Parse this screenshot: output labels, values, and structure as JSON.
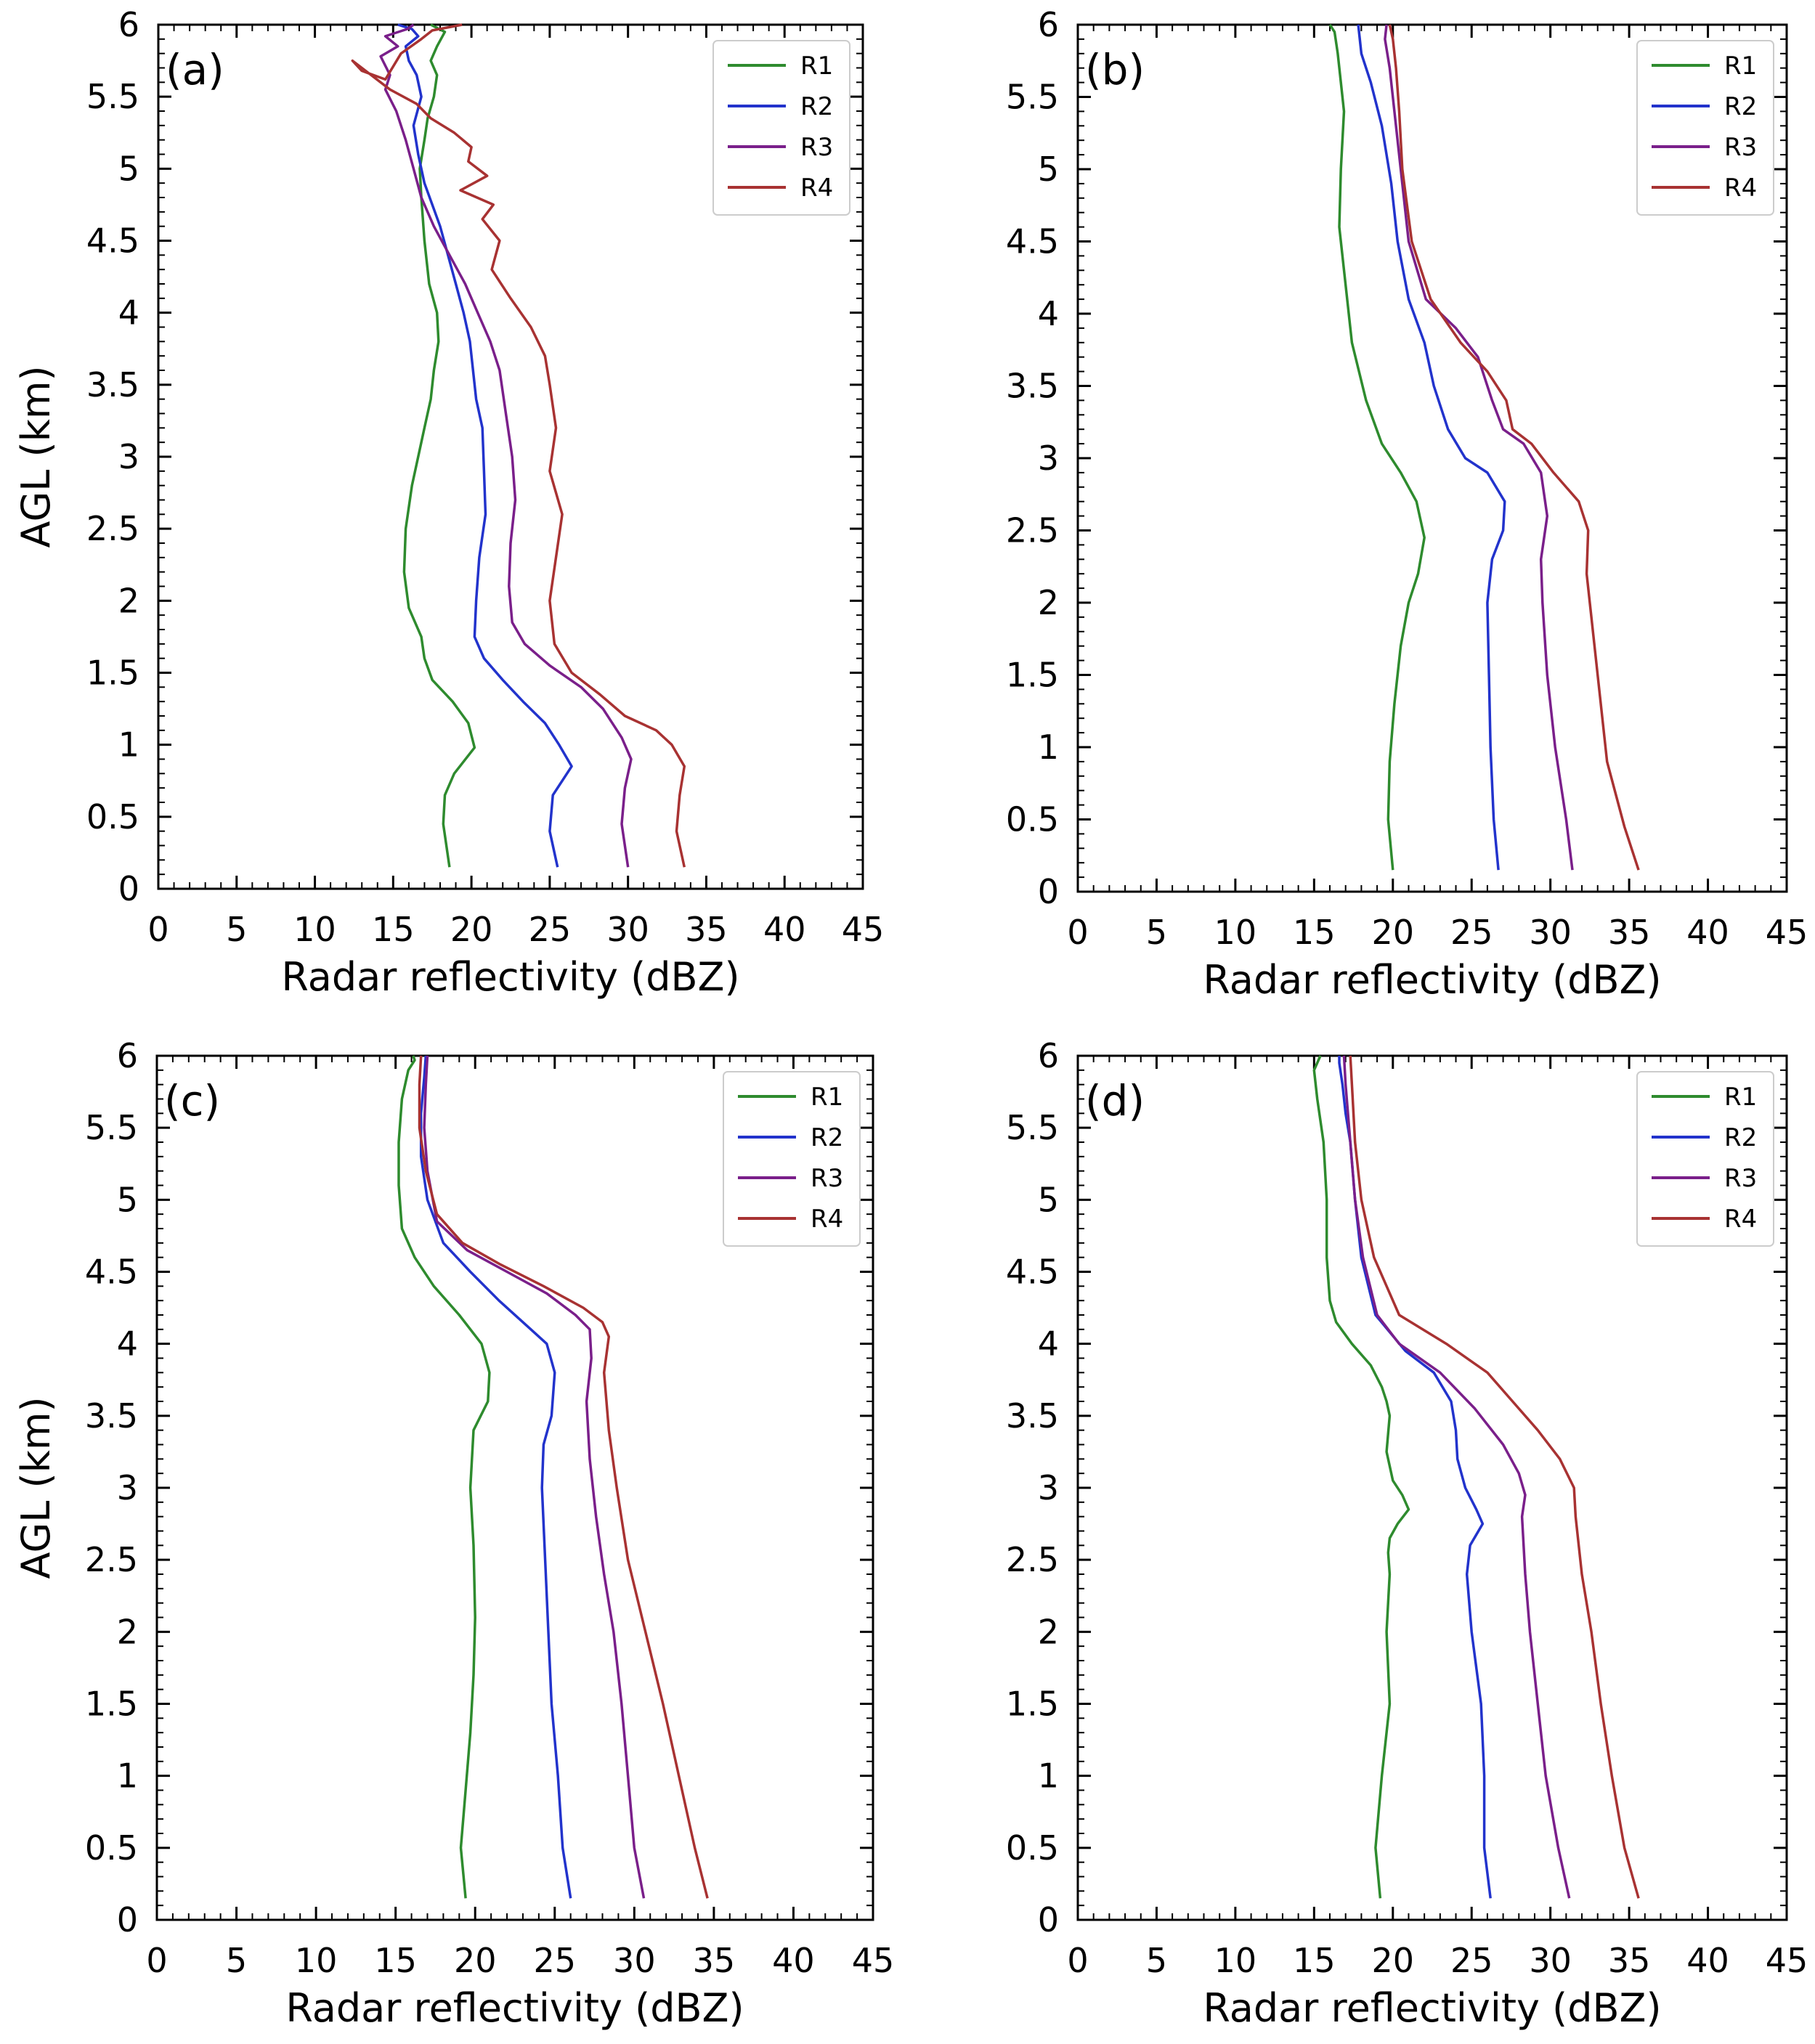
{
  "figure": {
    "colors": {
      "R1": "#2e8b2e",
      "R2": "#2233cc",
      "R3": "#7a1f8a",
      "R4": "#a83232",
      "axis": "#000000"
    }
  },
  "chart_data": [
    {
      "type": "line",
      "panel_label": "(a)",
      "xlabel": "Radar reflectivity (dBZ)",
      "ylabel": "AGL (km)",
      "xlim": [
        0,
        45
      ],
      "ylim": [
        0,
        6
      ],
      "xticks": [
        "0",
        "5",
        "10",
        "15",
        "20",
        "25",
        "30",
        "35",
        "40",
        "45"
      ],
      "yticks": [
        "0",
        "0.5",
        "1",
        "1.5",
        "2",
        "2.5",
        "3",
        "3.5",
        "4",
        "4.5",
        "5",
        "5.5",
        "6"
      ],
      "legend": [
        "R1",
        "R2",
        "R3",
        "R4"
      ],
      "legend_position": "top-right",
      "series": [
        {
          "name": "R1",
          "x": [
            18.6,
            18.2,
            18.3,
            18.9,
            20.2,
            19.8,
            18.8,
            17.5,
            17.0,
            16.8,
            16.0,
            15.7,
            15.8,
            16.2,
            16.6,
            17.0,
            17.4,
            17.6,
            17.9,
            17.8,
            17.3,
            17.0,
            16.8,
            16.7,
            17.0,
            17.2,
            17.6,
            17.8,
            17.4,
            17.8,
            18.3,
            17.4
          ],
          "y": [
            0.15,
            0.45,
            0.65,
            0.8,
            0.98,
            1.15,
            1.3,
            1.45,
            1.6,
            1.75,
            1.95,
            2.2,
            2.5,
            2.8,
            3.0,
            3.2,
            3.4,
            3.6,
            3.8,
            4.0,
            4.2,
            4.5,
            4.8,
            5.0,
            5.2,
            5.35,
            5.5,
            5.65,
            5.75,
            5.85,
            5.95,
            6.0
          ]
        },
        {
          "name": "R2",
          "x": [
            25.5,
            25.0,
            25.2,
            26.4,
            25.6,
            24.7,
            23.3,
            22.0,
            20.8,
            20.2,
            20.3,
            20.5,
            20.9,
            20.8,
            20.7,
            20.3,
            20.1,
            19.9,
            19.5,
            19.0,
            18.5,
            18.0,
            17.0,
            16.6,
            16.3,
            16.8,
            16.5,
            16.0,
            15.8,
            16.6,
            16.2,
            15.3
          ],
          "y": [
            0.15,
            0.4,
            0.65,
            0.85,
            1.0,
            1.15,
            1.3,
            1.45,
            1.6,
            1.75,
            2.0,
            2.3,
            2.6,
            2.9,
            3.2,
            3.4,
            3.6,
            3.8,
            4.0,
            4.2,
            4.4,
            4.6,
            4.9,
            5.1,
            5.3,
            5.5,
            5.65,
            5.75,
            5.85,
            5.92,
            5.97,
            6.0
          ]
        },
        {
          "name": "R3",
          "x": [
            30.0,
            29.6,
            29.8,
            30.2,
            29.6,
            28.4,
            27.0,
            25.0,
            23.4,
            22.6,
            22.4,
            22.5,
            22.8,
            22.6,
            22.2,
            21.8,
            21.2,
            20.4,
            19.6,
            18.6,
            17.6,
            16.8,
            16.3,
            15.8,
            15.2,
            14.5,
            14.8,
            14.2,
            15.3,
            14.5,
            15.9,
            16.3
          ],
          "y": [
            0.15,
            0.45,
            0.7,
            0.9,
            1.05,
            1.25,
            1.4,
            1.55,
            1.7,
            1.85,
            2.1,
            2.4,
            2.7,
            3.0,
            3.3,
            3.6,
            3.8,
            4.0,
            4.2,
            4.4,
            4.6,
            4.8,
            5.0,
            5.2,
            5.4,
            5.55,
            5.65,
            5.78,
            5.85,
            5.92,
            5.97,
            6.0
          ]
        },
        {
          "name": "R4",
          "x": [
            33.6,
            33.1,
            33.3,
            33.6,
            32.8,
            31.8,
            29.8,
            28.2,
            26.4,
            25.3,
            25.0,
            25.4,
            25.8,
            25.0,
            25.4,
            25.0,
            24.7,
            23.8,
            22.5,
            21.3,
            21.8,
            20.7,
            21.4,
            19.3,
            21.0,
            19.8,
            20.0,
            18.9,
            17.4,
            16.5,
            14.8,
            12.4,
            13.0,
            14.5,
            15.5,
            16.8,
            17.5,
            19.4
          ],
          "y": [
            0.15,
            0.4,
            0.65,
            0.85,
            1.0,
            1.1,
            1.2,
            1.35,
            1.5,
            1.7,
            2.0,
            2.3,
            2.6,
            2.9,
            3.2,
            3.5,
            3.7,
            3.9,
            4.1,
            4.3,
            4.5,
            4.65,
            4.75,
            4.85,
            4.95,
            5.05,
            5.15,
            5.25,
            5.35,
            5.45,
            5.55,
            5.75,
            5.68,
            5.62,
            5.8,
            5.9,
            5.96,
            6.0
          ]
        }
      ]
    },
    {
      "type": "line",
      "panel_label": "(b)",
      "xlabel": "Radar reflectivity (dBZ)",
      "ylabel": "",
      "xlim": [
        0,
        45
      ],
      "ylim": [
        0,
        6
      ],
      "xticks": [
        "0",
        "5",
        "10",
        "15",
        "20",
        "25",
        "30",
        "35",
        "40",
        "45"
      ],
      "yticks": [
        "0",
        "0.5",
        "1",
        "1.5",
        "2",
        "2.5",
        "3",
        "3.5",
        "4",
        "4.5",
        "5",
        "5.5",
        "6"
      ],
      "legend": [
        "R1",
        "R2",
        "R3",
        "R4"
      ],
      "legend_position": "top-right",
      "series": [
        {
          "name": "R1",
          "x": [
            20.0,
            19.7,
            19.8,
            20.1,
            20.5,
            21.0,
            21.6,
            22.0,
            21.5,
            20.5,
            19.3,
            18.3,
            17.4,
            17.0,
            16.6,
            16.7,
            16.9,
            16.7,
            16.5,
            16.3,
            16.0
          ],
          "y": [
            0.15,
            0.5,
            0.9,
            1.3,
            1.7,
            2.0,
            2.2,
            2.45,
            2.7,
            2.9,
            3.1,
            3.4,
            3.8,
            4.2,
            4.6,
            5.0,
            5.4,
            5.6,
            5.8,
            5.95,
            6.0
          ]
        },
        {
          "name": "R2",
          "x": [
            26.7,
            26.4,
            26.2,
            26.1,
            26.0,
            26.3,
            27.0,
            27.1,
            26.0,
            24.6,
            23.5,
            22.6,
            22.0,
            21.0,
            20.3,
            19.9,
            19.3,
            18.6,
            18.0,
            17.8
          ],
          "y": [
            0.15,
            0.5,
            1.0,
            1.5,
            2.0,
            2.3,
            2.5,
            2.7,
            2.9,
            3.0,
            3.2,
            3.5,
            3.8,
            4.1,
            4.5,
            4.9,
            5.3,
            5.6,
            5.8,
            6.0
          ]
        },
        {
          "name": "R3",
          "x": [
            31.4,
            31.0,
            30.3,
            29.8,
            29.5,
            29.4,
            29.8,
            29.4,
            28.3,
            27.0,
            26.3,
            25.4,
            24.0,
            22.1,
            21.0,
            20.5,
            20.1,
            19.8,
            19.5,
            19.6
          ],
          "y": [
            0.15,
            0.5,
            1.0,
            1.5,
            2.0,
            2.3,
            2.6,
            2.9,
            3.1,
            3.2,
            3.4,
            3.7,
            3.9,
            4.1,
            4.5,
            5.0,
            5.4,
            5.7,
            5.9,
            6.0
          ]
        },
        {
          "name": "R4",
          "x": [
            35.6,
            34.7,
            33.6,
            33.1,
            32.6,
            32.3,
            32.4,
            31.8,
            30.2,
            28.8,
            27.6,
            27.2,
            26.0,
            24.3,
            22.4,
            21.2,
            20.6,
            20.4,
            20.2,
            20.0,
            19.8
          ],
          "y": [
            0.15,
            0.45,
            0.9,
            1.4,
            1.9,
            2.2,
            2.5,
            2.7,
            2.9,
            3.1,
            3.2,
            3.4,
            3.6,
            3.8,
            4.1,
            4.5,
            5.0,
            5.4,
            5.7,
            5.9,
            6.0
          ]
        }
      ]
    },
    {
      "type": "line",
      "panel_label": "(c)",
      "xlabel": "Radar reflectivity (dBZ)",
      "ylabel": "AGL (km)",
      "xlim": [
        0,
        45
      ],
      "ylim": [
        0,
        6
      ],
      "xticks": [
        "0",
        "5",
        "10",
        "15",
        "20",
        "25",
        "30",
        "35",
        "40",
        "45"
      ],
      "yticks": [
        "0",
        "0.5",
        "1",
        "1.5",
        "2",
        "2.5",
        "3",
        "3.5",
        "4",
        "4.5",
        "5",
        "5.5",
        "6"
      ],
      "legend": [
        "R1",
        "R2",
        "R3",
        "R4"
      ],
      "legend_position": "top-right",
      "series": [
        {
          "name": "R1",
          "x": [
            19.4,
            19.1,
            19.4,
            19.7,
            19.9,
            20.0,
            19.9,
            19.7,
            19.9,
            20.8,
            20.9,
            20.4,
            19.0,
            17.4,
            16.2,
            15.4,
            15.2,
            15.2,
            15.4,
            15.8,
            16.2,
            16.1
          ],
          "y": [
            0.15,
            0.5,
            0.9,
            1.3,
            1.7,
            2.1,
            2.6,
            3.0,
            3.4,
            3.6,
            3.8,
            4.0,
            4.2,
            4.4,
            4.6,
            4.8,
            5.1,
            5.4,
            5.7,
            5.9,
            5.97,
            6.0
          ]
        },
        {
          "name": "R2",
          "x": [
            26.0,
            25.5,
            25.2,
            24.8,
            24.6,
            24.4,
            24.2,
            24.3,
            24.8,
            25.0,
            24.5,
            23.5,
            21.5,
            19.7,
            18.0,
            17.0,
            16.6,
            16.6,
            16.8,
            16.9
          ],
          "y": [
            0.15,
            0.5,
            1.0,
            1.5,
            2.0,
            2.5,
            3.0,
            3.3,
            3.5,
            3.8,
            4.0,
            4.1,
            4.3,
            4.5,
            4.7,
            5.0,
            5.3,
            5.6,
            5.85,
            6.0
          ]
        },
        {
          "name": "R3",
          "x": [
            30.6,
            30.0,
            29.6,
            29.2,
            28.7,
            28.1,
            27.6,
            27.2,
            27.0,
            27.3,
            27.2,
            26.3,
            24.5,
            22.0,
            19.5,
            17.6,
            17.0,
            16.8,
            16.9,
            17.0
          ],
          "y": [
            0.15,
            0.5,
            1.0,
            1.5,
            2.0,
            2.4,
            2.8,
            3.2,
            3.6,
            3.9,
            4.1,
            4.2,
            4.35,
            4.5,
            4.65,
            4.85,
            5.2,
            5.5,
            5.8,
            6.0
          ]
        },
        {
          "name": "R4",
          "x": [
            34.6,
            33.8,
            32.8,
            31.8,
            30.7,
            29.6,
            28.9,
            28.4,
            28.1,
            28.4,
            28.0,
            26.8,
            24.3,
            21.6,
            19.2,
            17.6,
            16.9,
            16.5,
            16.5,
            16.6
          ],
          "y": [
            0.15,
            0.5,
            1.0,
            1.5,
            2.0,
            2.5,
            3.0,
            3.4,
            3.8,
            4.05,
            4.15,
            4.25,
            4.4,
            4.55,
            4.7,
            4.9,
            5.2,
            5.5,
            5.8,
            6.0
          ]
        }
      ]
    },
    {
      "type": "line",
      "panel_label": "(d)",
      "xlabel": "Radar reflectivity (dBZ)",
      "ylabel": "",
      "xlim": [
        0,
        45
      ],
      "ylim": [
        0,
        6
      ],
      "xticks": [
        "0",
        "5",
        "10",
        "15",
        "20",
        "25",
        "30",
        "35",
        "40",
        "45"
      ],
      "yticks": [
        "0",
        "0.5",
        "1",
        "1.5",
        "2",
        "2.5",
        "3",
        "3.5",
        "4",
        "4.5",
        "5",
        "5.5",
        "6"
      ],
      "legend": [
        "R1",
        "R2",
        "R3",
        "R4"
      ],
      "legend_position": "top-right",
      "series": [
        {
          "name": "R1",
          "x": [
            19.2,
            18.9,
            19.3,
            19.8,
            19.6,
            19.8,
            19.7,
            19.8,
            20.3,
            21.0,
            20.6,
            20.0,
            19.6,
            19.8,
            19.6,
            19.3,
            18.6,
            17.4,
            16.4,
            16.0,
            15.8,
            15.8,
            15.6,
            15.2,
            15.0,
            15.4
          ],
          "y": [
            0.15,
            0.5,
            1.0,
            1.5,
            2.0,
            2.4,
            2.55,
            2.65,
            2.75,
            2.85,
            2.95,
            3.05,
            3.25,
            3.5,
            3.6,
            3.7,
            3.85,
            4.0,
            4.15,
            4.3,
            4.6,
            5.0,
            5.4,
            5.7,
            5.9,
            6.0
          ]
        },
        {
          "name": "R2",
          "x": [
            26.2,
            25.8,
            25.8,
            25.6,
            25.0,
            24.7,
            24.9,
            25.7,
            25.3,
            24.6,
            24.1,
            24.0,
            23.7,
            22.6,
            20.8,
            18.9,
            18.0,
            17.6,
            17.3,
            17.0,
            16.8,
            16.6,
            16.6
          ],
          "y": [
            0.15,
            0.5,
            1.0,
            1.5,
            2.0,
            2.4,
            2.6,
            2.75,
            2.85,
            3.0,
            3.2,
            3.4,
            3.6,
            3.8,
            3.95,
            4.2,
            4.6,
            5.0,
            5.4,
            5.6,
            5.8,
            5.95,
            6.0
          ]
        },
        {
          "name": "R3",
          "x": [
            31.2,
            30.5,
            29.7,
            29.2,
            28.7,
            28.4,
            28.2,
            28.4,
            28.0,
            27.0,
            25.2,
            23.0,
            20.4,
            19.0,
            18.1,
            17.6,
            17.3,
            17.0,
            16.9
          ],
          "y": [
            0.15,
            0.5,
            1.0,
            1.5,
            2.0,
            2.4,
            2.8,
            2.95,
            3.1,
            3.3,
            3.55,
            3.8,
            4.0,
            4.2,
            4.6,
            5.0,
            5.4,
            5.8,
            6.0
          ]
        },
        {
          "name": "R4",
          "x": [
            35.6,
            34.7,
            33.9,
            33.2,
            32.6,
            32.0,
            31.6,
            31.5,
            30.6,
            29.2,
            27.6,
            26.0,
            23.4,
            20.4,
            18.8,
            18.0,
            17.6,
            17.4,
            17.3
          ],
          "y": [
            0.15,
            0.5,
            1.0,
            1.5,
            2.0,
            2.4,
            2.8,
            3.0,
            3.2,
            3.4,
            3.6,
            3.8,
            4.0,
            4.2,
            4.6,
            5.0,
            5.4,
            5.8,
            6.0
          ]
        }
      ]
    }
  ]
}
